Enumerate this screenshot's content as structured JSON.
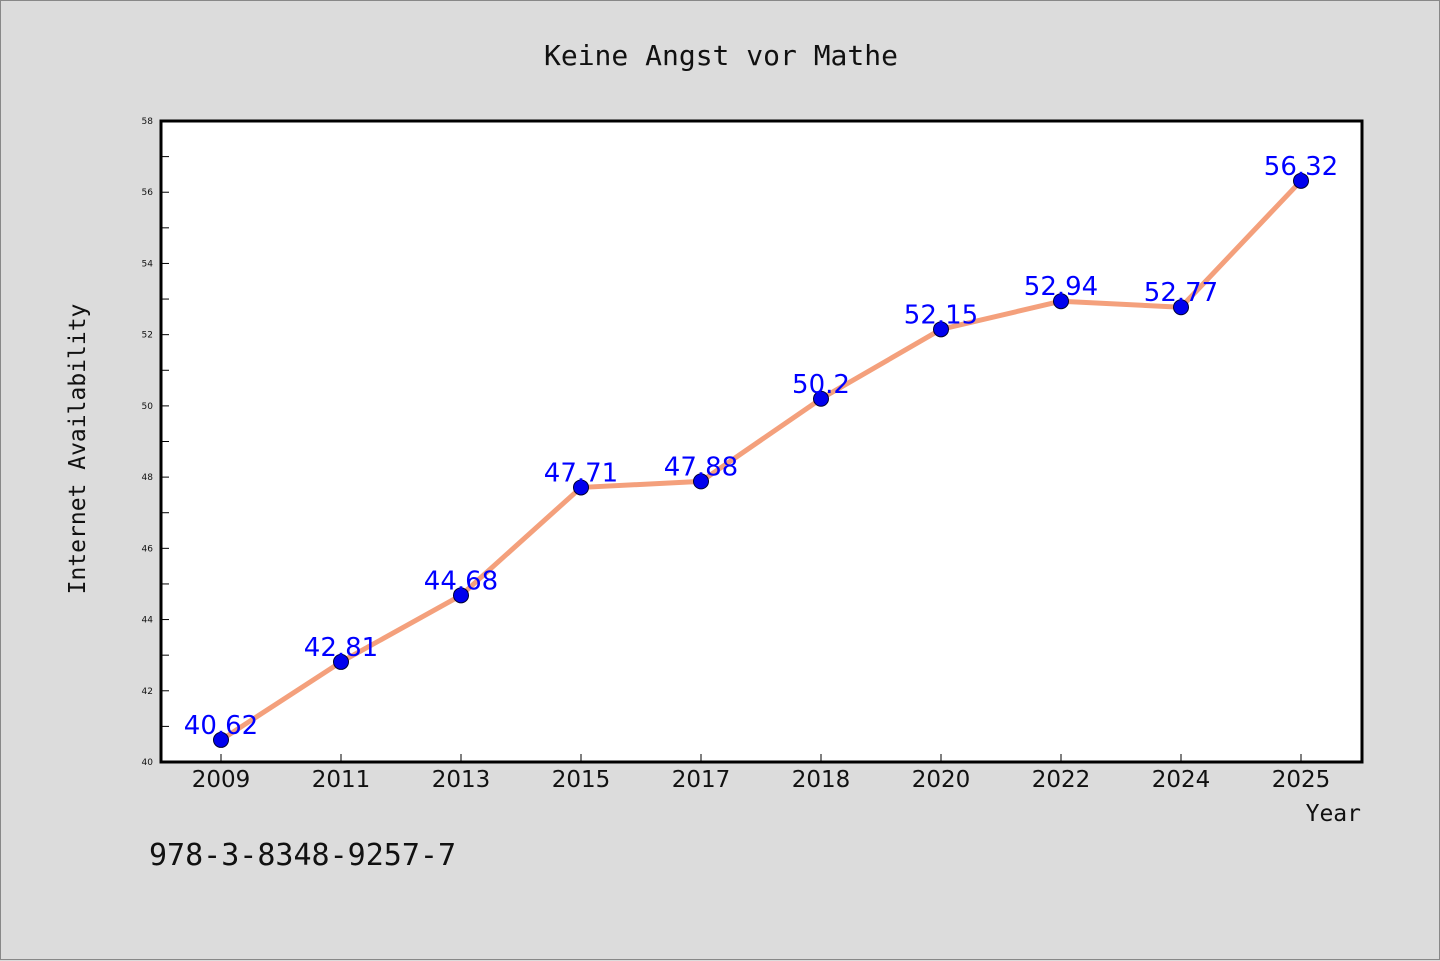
{
  "chart_data": {
    "type": "line",
    "title": "Keine Angst vor Mathe",
    "xlabel": "Year",
    "ylabel": "Internet Availability",
    "categories": [
      "2009",
      "2011",
      "2013",
      "2015",
      "2017",
      "2018",
      "2020",
      "2022",
      "2024",
      "2025"
    ],
    "series": [
      {
        "values": [
          40.62,
          42.81,
          44.68,
          47.71,
          47.88,
          50.2,
          52.15,
          52.94,
          52.77,
          56.32
        ],
        "data_labels": [
          "40.62",
          "42.81",
          "44.68",
          "47.71",
          "47.88",
          "50.2",
          "52.15",
          "52.94",
          "52.77",
          "56.32"
        ]
      }
    ],
    "ylim": [
      40,
      58
    ],
    "yticks": [
      40,
      42,
      44,
      46,
      48,
      50,
      52,
      54,
      56,
      58
    ],
    "grid": false,
    "line_color": "#f4a07c",
    "marker_color": "#0000ee",
    "label_color": "#0000ff"
  },
  "footer_text": "978-3-8348-9257-7"
}
